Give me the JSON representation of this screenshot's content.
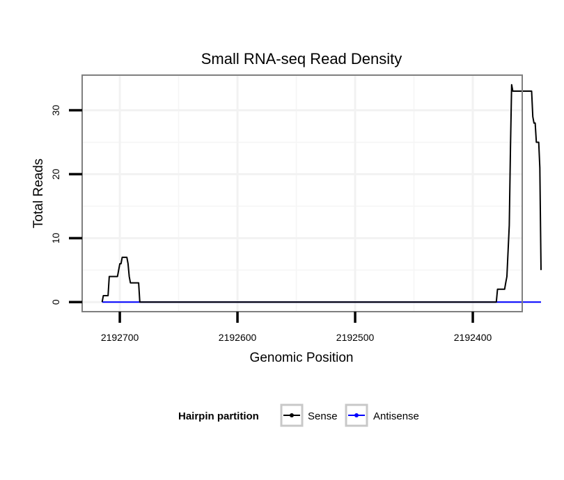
{
  "chart_data": {
    "type": "line",
    "title": "Small RNA-seq Read Density",
    "xlabel": "Genomic Position",
    "ylabel": "Total Reads",
    "x_reversed": true,
    "xlim": [
      2192732,
      2192358
    ],
    "ylim": [
      -1.5,
      35.5
    ],
    "xticks": [
      2192700,
      2192600,
      2192500,
      2192400
    ],
    "xtick_labels": [
      "2192700",
      "2192600",
      "2192500",
      "2192400"
    ],
    "yticks": [
      0,
      10,
      20,
      30
    ],
    "ytick_labels": [
      "0",
      "10",
      "20",
      "30"
    ],
    "x_minor_gridlines": [
      2192650,
      2192550,
      2192450
    ],
    "y_minor_gridlines": [
      5,
      15,
      25
    ],
    "grid": true,
    "legend": {
      "title": "Hairpin partition",
      "position": "bottom",
      "entries": [
        {
          "label": "Sense",
          "color": "#000000"
        },
        {
          "label": "Antisense",
          "color": "#0000ff"
        }
      ]
    },
    "series": [
      {
        "name": "Sense",
        "color": "#000000",
        "points": [
          [
            2192715,
            0
          ],
          [
            2192714,
            1
          ],
          [
            2192710,
            1
          ],
          [
            2192709,
            4
          ],
          [
            2192702,
            4
          ],
          [
            2192701,
            5
          ],
          [
            2192700,
            6
          ],
          [
            2192699,
            6
          ],
          [
            2192698,
            7
          ],
          [
            2192694,
            7
          ],
          [
            2192693,
            6
          ],
          [
            2192692,
            4
          ],
          [
            2192691,
            3
          ],
          [
            2192684,
            3
          ],
          [
            2192683,
            0
          ],
          [
            2192380,
            0
          ],
          [
            2192379,
            2
          ],
          [
            2192373,
            2
          ],
          [
            2192372,
            3
          ],
          [
            2192371,
            4
          ],
          [
            2192370,
            8
          ],
          [
            2192369,
            12
          ],
          [
            2192368,
            24
          ],
          [
            2192367,
            34
          ],
          [
            2192366,
            33
          ],
          [
            2192350,
            33
          ],
          [
            2192349,
            29
          ],
          [
            2192348,
            28
          ],
          [
            2192347,
            28
          ],
          [
            2192346,
            25
          ],
          [
            2192344,
            25
          ],
          [
            2192343,
            21
          ],
          [
            2192342,
            5
          ]
        ]
      },
      {
        "name": "Antisense",
        "color": "#0000ff",
        "points": [
          [
            2192715,
            0
          ],
          [
            2192342,
            0
          ]
        ]
      }
    ]
  }
}
